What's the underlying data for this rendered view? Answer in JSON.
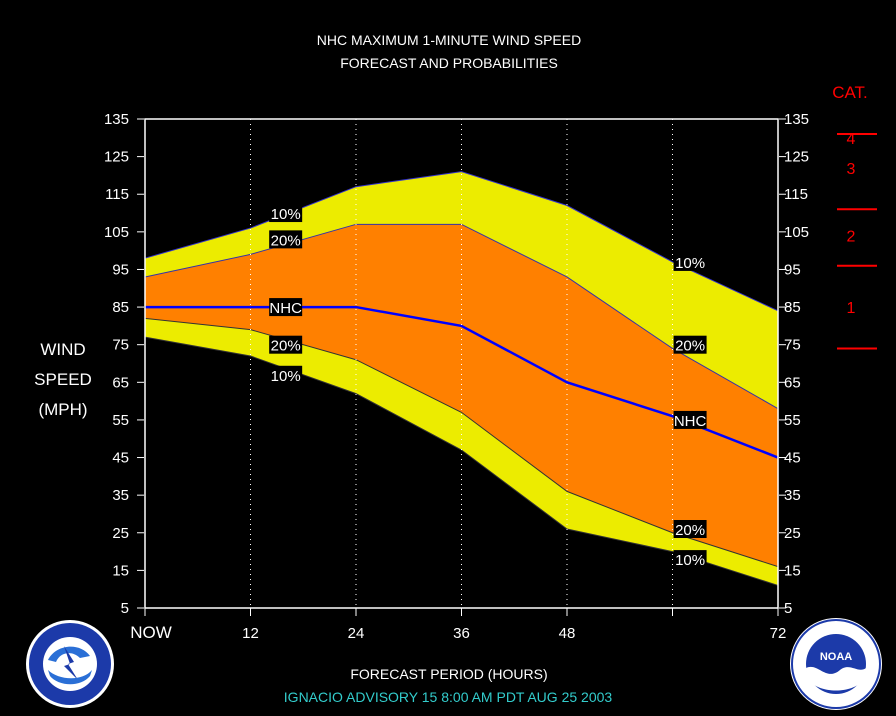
{
  "title_line1": "NHC MAXIMUM 1-MINUTE WIND SPEED",
  "title_line2": "FORECAST AND PROBABILITIES",
  "ylabel": [
    "WIND",
    "SPEED",
    "(MPH)"
  ],
  "xlabel": "FORECAST PERIOD (HOURS)",
  "advisory": "IGNACIO   ADVISORY  15 8:00  AM  PDT  AUG 25  2003",
  "category": {
    "header": "CAT.",
    "labels": [
      {
        "text": "4",
        "mid": 130
      },
      {
        "text": "3",
        "mid": 122
      },
      {
        "text": "2",
        "mid": 104
      },
      {
        "text": "1",
        "mid": 85
      }
    ],
    "thresholds": [
      131,
      111,
      96,
      74
    ]
  },
  "colors": {
    "outer_band": "#ecec00",
    "inner_band": "#ff8000",
    "nhc_line": "#0000ff",
    "frame": "#ffffff",
    "category": "#ff0000",
    "advisory": "#33cccc"
  },
  "logos": {
    "left": "national-weather-service-logo",
    "right": "noaa-logo"
  },
  "chart_data": {
    "type": "area",
    "x": [
      0,
      12,
      24,
      36,
      48,
      60,
      72
    ],
    "x_tick_labels": [
      "NOW",
      "12",
      "24",
      "36",
      "48",
      "",
      "72"
    ],
    "y_ticks": [
      5,
      15,
      25,
      35,
      45,
      55,
      65,
      75,
      85,
      95,
      105,
      115,
      125,
      135
    ],
    "xlim": [
      0,
      72
    ],
    "ylim": [
      5,
      135
    ],
    "series": [
      {
        "name": "10%",
        "upper": [
          98,
          106,
          117,
          121,
          112,
          97,
          84
        ],
        "lower": [
          77,
          72,
          62,
          47,
          26,
          20,
          11
        ]
      },
      {
        "name": "20%",
        "upper": [
          93,
          99,
          107,
          107,
          93,
          74,
          58
        ],
        "lower": [
          82,
          79,
          71,
          57,
          36,
          25,
          16
        ]
      },
      {
        "name": "NHC",
        "values": [
          85,
          85,
          85,
          80,
          65,
          56,
          45
        ]
      }
    ],
    "labels": [
      {
        "text": "10%",
        "x": 16,
        "y": 110
      },
      {
        "text": "20%",
        "x": 16,
        "y": 103
      },
      {
        "text": "NHC",
        "x": 16,
        "y": 85
      },
      {
        "text": "20%",
        "x": 16,
        "y": 75
      },
      {
        "text": "10%",
        "x": 16,
        "y": 67
      },
      {
        "text": "10%",
        "x": 62,
        "y": 97
      },
      {
        "text": "20%",
        "x": 62,
        "y": 75
      },
      {
        "text": "NHC",
        "x": 62,
        "y": 55
      },
      {
        "text": "20%",
        "x": 62,
        "y": 26
      },
      {
        "text": "10%",
        "x": 62,
        "y": 18
      }
    ]
  }
}
